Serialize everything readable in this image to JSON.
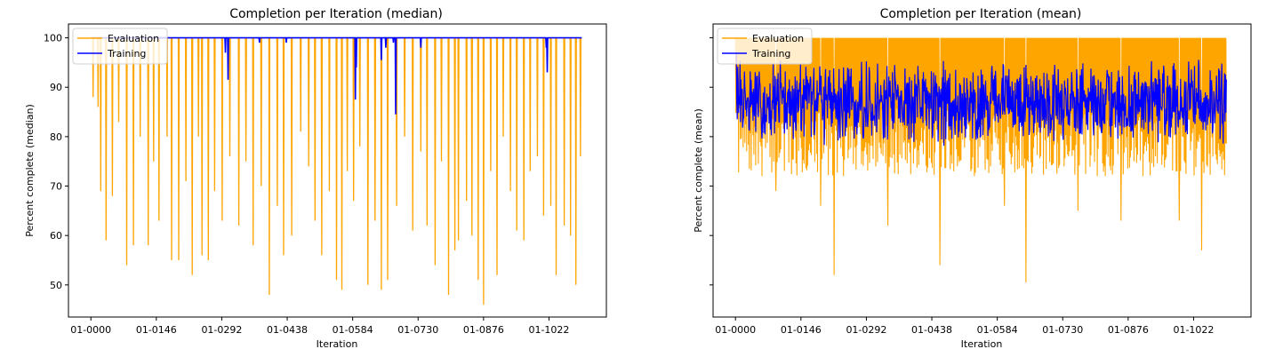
{
  "chart_data": [
    {
      "type": "line",
      "title": "Completion per Iteration (median)",
      "xlabel": "Iteration",
      "ylabel": "Percent complete (median)",
      "x_tick_labels": [
        "01-0000",
        "01-0146",
        "01-0292",
        "01-0438",
        "01-0584",
        "01-0730",
        "01-0876",
        "01-1022"
      ],
      "y_ticks": [
        50,
        60,
        70,
        80,
        90,
        100
      ],
      "xlim": [
        -50,
        1150
      ],
      "ylim": [
        43.5,
        102.8
      ],
      "x_range": [
        0,
        1095
      ],
      "grid": false,
      "legend_position": "upper left",
      "series": [
        {
          "name": "Evaluation",
          "color": "#ffa500",
          "stat": "median",
          "baseline": 100,
          "dips": [
            [
              5,
              88
            ],
            [
              16,
              86
            ],
            [
              22,
              69
            ],
            [
              34,
              59
            ],
            [
              48,
              68
            ],
            [
              62,
              83
            ],
            [
              80,
              54
            ],
            [
              95,
              58
            ],
            [
              110,
              80
            ],
            [
              128,
              58
            ],
            [
              140,
              75
            ],
            [
              152,
              63
            ],
            [
              170,
              80
            ],
            [
              180,
              55
            ],
            [
              196,
              55
            ],
            [
              212,
              71
            ],
            [
              226,
              52
            ],
            [
              240,
              80
            ],
            [
              248,
              56
            ],
            [
              262,
              55
            ],
            [
              276,
              69
            ],
            [
              293,
              63
            ],
            [
              310,
              76
            ],
            [
              330,
              62
            ],
            [
              346,
              75
            ],
            [
              362,
              58
            ],
            [
              380,
              70
            ],
            [
              398,
              48
            ],
            [
              416,
              66
            ],
            [
              430,
              56
            ],
            [
              448,
              60
            ],
            [
              468,
              81
            ],
            [
              486,
              74
            ],
            [
              500,
              63
            ],
            [
              515,
              56
            ],
            [
              532,
              69
            ],
            [
              548,
              51
            ],
            [
              560,
              49
            ],
            [
              572,
              73
            ],
            [
              586,
              67
            ],
            [
              600,
              78
            ],
            [
              618,
              50
            ],
            [
              634,
              63
            ],
            [
              648,
              49
            ],
            [
              662,
              51
            ],
            [
              682,
              66
            ],
            [
              700,
              80
            ],
            [
              718,
              61
            ],
            [
              736,
              77
            ],
            [
              750,
              62
            ],
            [
              768,
              54
            ],
            [
              782,
              75
            ],
            [
              798,
              48
            ],
            [
              812,
              57
            ],
            [
              820,
              59
            ],
            [
              838,
              67
            ],
            [
              850,
              60
            ],
            [
              864,
              51
            ],
            [
              876,
              46
            ],
            [
              892,
              73
            ],
            [
              906,
              52
            ],
            [
              920,
              80
            ],
            [
              936,
              69
            ],
            [
              950,
              61
            ],
            [
              966,
              59
            ],
            [
              980,
              73
            ],
            [
              996,
              76
            ],
            [
              1010,
              64
            ],
            [
              1026,
              66
            ],
            [
              1038,
              52
            ],
            [
              1056,
              62
            ],
            [
              1070,
              60
            ],
            [
              1082,
              50
            ],
            [
              1092,
              76
            ]
          ]
        },
        {
          "name": "Training",
          "color": "#0000ff",
          "stat": "median",
          "baseline": 100,
          "dips": [
            [
              300,
              97
            ],
            [
              306,
              91.5
            ],
            [
              376,
              99
            ],
            [
              436,
              99
            ],
            [
              590,
              87.5
            ],
            [
              592,
              94
            ],
            [
              648,
              95.5
            ],
            [
              658,
              98
            ],
            [
              675,
              99
            ],
            [
              680,
              84.5
            ],
            [
              736,
              98
            ],
            [
              1016,
              98
            ],
            [
              1018,
              93
            ]
          ]
        }
      ]
    },
    {
      "type": "line",
      "title": "Completion per Iteration (mean)",
      "xlabel": "Iteration",
      "ylabel": "Percent complete (mean)",
      "x_tick_labels": [
        "01-0000",
        "01-0146",
        "01-0292",
        "01-0438",
        "01-0584",
        "01-0730",
        "01-0876",
        "01-1022"
      ],
      "ylim": [
        43.5,
        102.8
      ],
      "shared_y_with_left": true,
      "x_range": [
        0,
        1095
      ],
      "grid": false,
      "legend_position": "upper left",
      "series": [
        {
          "name": "Evaluation",
          "color": "#ffa500",
          "stat": "mean",
          "low_range": [
            72,
            86
          ],
          "deep_dips": [
            [
              220,
              52
            ],
            [
              456,
              54
            ],
            [
              648,
              50.5
            ],
            [
              1040,
              57
            ],
            [
              990,
              63
            ],
            [
              860,
              63
            ],
            [
              764,
              65
            ],
            [
              600,
              66
            ],
            [
              340,
              62
            ],
            [
              190,
              66
            ],
            [
              90,
              69
            ]
          ]
        },
        {
          "name": "Training",
          "color": "#0000ff",
          "stat": "mean",
          "center": 87,
          "range": [
            75,
            97
          ]
        }
      ]
    }
  ]
}
